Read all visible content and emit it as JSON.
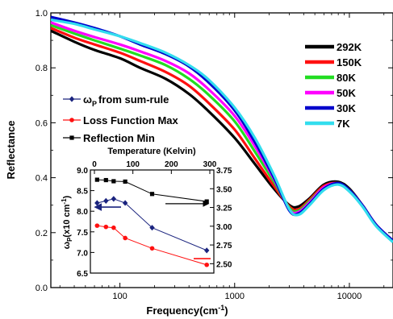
{
  "chart_data": [
    {
      "type": "line",
      "xlabel": "Frequency(cm",
      "xlabel_sup": "-1",
      "xlabel_tail": ")",
      "ylabel": "Reflectance",
      "xscale": "log",
      "xlim": [
        25,
        24000
      ],
      "ylim": [
        0.0,
        1.0
      ],
      "xticks": [
        100,
        1000,
        10000
      ],
      "xtick_labels": [
        "100",
        "1000",
        "10000"
      ],
      "yticks": [
        0.0,
        0.2,
        0.4,
        0.6,
        0.8,
        1.0
      ],
      "ytick_labels": [
        "0.0",
        "0.2",
        "0.4",
        "0.6",
        "0.8",
        "1.0"
      ],
      "legend_position": "top-right",
      "series": [
        {
          "name": "292K",
          "color": "#000000",
          "x": [
            25,
            40,
            60,
            100,
            150,
            250,
            400,
            600,
            1000,
            1500,
            2200,
            3000,
            3600,
            4500,
            6000,
            8000,
            10000,
            13000,
            17000,
            24000
          ],
          "y": [
            0.935,
            0.895,
            0.865,
            0.835,
            0.8,
            0.76,
            0.705,
            0.64,
            0.545,
            0.45,
            0.36,
            0.3,
            0.295,
            0.325,
            0.375,
            0.385,
            0.36,
            0.3,
            0.23,
            0.17
          ]
        },
        {
          "name": "150K",
          "color": "#ff1010",
          "x": [
            25,
            40,
            60,
            100,
            150,
            250,
            400,
            600,
            1000,
            1500,
            2200,
            3000,
            3600,
            4500,
            6000,
            8000,
            10000,
            13000,
            17000,
            24000
          ],
          "y": [
            0.945,
            0.91,
            0.885,
            0.855,
            0.825,
            0.785,
            0.735,
            0.67,
            0.575,
            0.47,
            0.37,
            0.295,
            0.285,
            0.32,
            0.37,
            0.38,
            0.355,
            0.3,
            0.23,
            0.17
          ]
        },
        {
          "name": "80K",
          "color": "#22dd22",
          "x": [
            25,
            40,
            60,
            100,
            150,
            250,
            400,
            600,
            1000,
            1500,
            2200,
            3000,
            3600,
            4500,
            6000,
            8000,
            10000,
            13000,
            17000,
            24000
          ],
          "y": [
            0.955,
            0.925,
            0.9,
            0.87,
            0.845,
            0.81,
            0.76,
            0.7,
            0.605,
            0.495,
            0.385,
            0.29,
            0.28,
            0.315,
            0.365,
            0.38,
            0.355,
            0.3,
            0.23,
            0.17
          ]
        },
        {
          "name": "50K",
          "color": "#ff00ff",
          "x": [
            25,
            40,
            60,
            100,
            150,
            250,
            400,
            600,
            1000,
            1500,
            2200,
            3000,
            3600,
            4500,
            6000,
            8000,
            10000,
            13000,
            17000,
            24000
          ],
          "y": [
            0.965,
            0.935,
            0.912,
            0.885,
            0.86,
            0.825,
            0.78,
            0.72,
            0.625,
            0.515,
            0.395,
            0.285,
            0.275,
            0.31,
            0.365,
            0.38,
            0.355,
            0.3,
            0.23,
            0.17
          ]
        },
        {
          "name": "30K",
          "color": "#0000cc",
          "x": [
            25,
            40,
            60,
            100,
            150,
            250,
            400,
            600,
            1000,
            1500,
            2200,
            3000,
            3600,
            4500,
            6000,
            8000,
            10000,
            13000,
            17000,
            24000
          ],
          "y": [
            0.985,
            0.965,
            0.945,
            0.915,
            0.885,
            0.85,
            0.805,
            0.745,
            0.645,
            0.53,
            0.4,
            0.28,
            0.27,
            0.305,
            0.36,
            0.38,
            0.355,
            0.3,
            0.23,
            0.17
          ]
        },
        {
          "name": "7K",
          "color": "#33ddee",
          "x": [
            25,
            40,
            60,
            100,
            150,
            250,
            400,
            600,
            1000,
            1500,
            2200,
            3000,
            3600,
            4500,
            6000,
            8000,
            10000,
            13000,
            17000,
            24000
          ],
          "y": [
            0.975,
            0.96,
            0.94,
            0.915,
            0.89,
            0.855,
            0.81,
            0.755,
            0.655,
            0.545,
            0.41,
            0.285,
            0.265,
            0.3,
            0.355,
            0.375,
            0.35,
            0.295,
            0.225,
            0.165
          ]
        }
      ]
    },
    {
      "type": "scatter",
      "inset": true,
      "ylabel": "ω",
      "ylabel_sub": "P",
      "ylabel_tail": "(x10 cm",
      "ylabel_sup": "-1",
      "ylabel_end": ")",
      "x2label": "Temperature (Kelvin)",
      "x2lim": [
        0,
        300
      ],
      "x2ticks": [
        0,
        100,
        200,
        300
      ],
      "x2tick_labels": [
        "0",
        "100",
        "200",
        "300"
      ],
      "ylim": [
        6.5,
        9.0
      ],
      "yticks": [
        6.5,
        7.0,
        7.5,
        8.0,
        8.5,
        9.0
      ],
      "ytick_labels": [
        "6.5",
        "7.0",
        "7.5",
        "8.0",
        "8.5",
        "9.0"
      ],
      "y2lim": [
        2.375,
        3.75
      ],
      "y2ticks": [
        2.5,
        2.75,
        3.0,
        3.25,
        3.5,
        3.75
      ],
      "y2tick_labels": [
        "2.50",
        "2.75",
        "3.00",
        "3.25",
        "3.50",
        "3.75"
      ],
      "legend_position": "above",
      "series": [
        {
          "name": "ω",
          "name_sub": "P",
          "name_tail": "from sum-rule",
          "color": "#1a237e",
          "marker": "diamond",
          "axis": "left",
          "x": [
            7,
            30,
            50,
            80,
            150,
            292
          ],
          "y": [
            8.2,
            8.25,
            8.3,
            8.2,
            7.6,
            7.05
          ]
        },
        {
          "name": "Loss Function Max",
          "color": "#ff1010",
          "marker": "circle",
          "axis": "left",
          "x": [
            7,
            30,
            50,
            80,
            150,
            292
          ],
          "y": [
            7.65,
            7.62,
            7.6,
            7.35,
            7.1,
            6.7
          ]
        },
        {
          "name": "Reflection Min",
          "color": "#000000",
          "marker": "square",
          "axis": "right",
          "x": [
            7,
            30,
            50,
            80,
            150,
            292
          ],
          "y": [
            3.62,
            3.615,
            3.6,
            3.595,
            3.43,
            3.33
          ]
        }
      ]
    }
  ]
}
